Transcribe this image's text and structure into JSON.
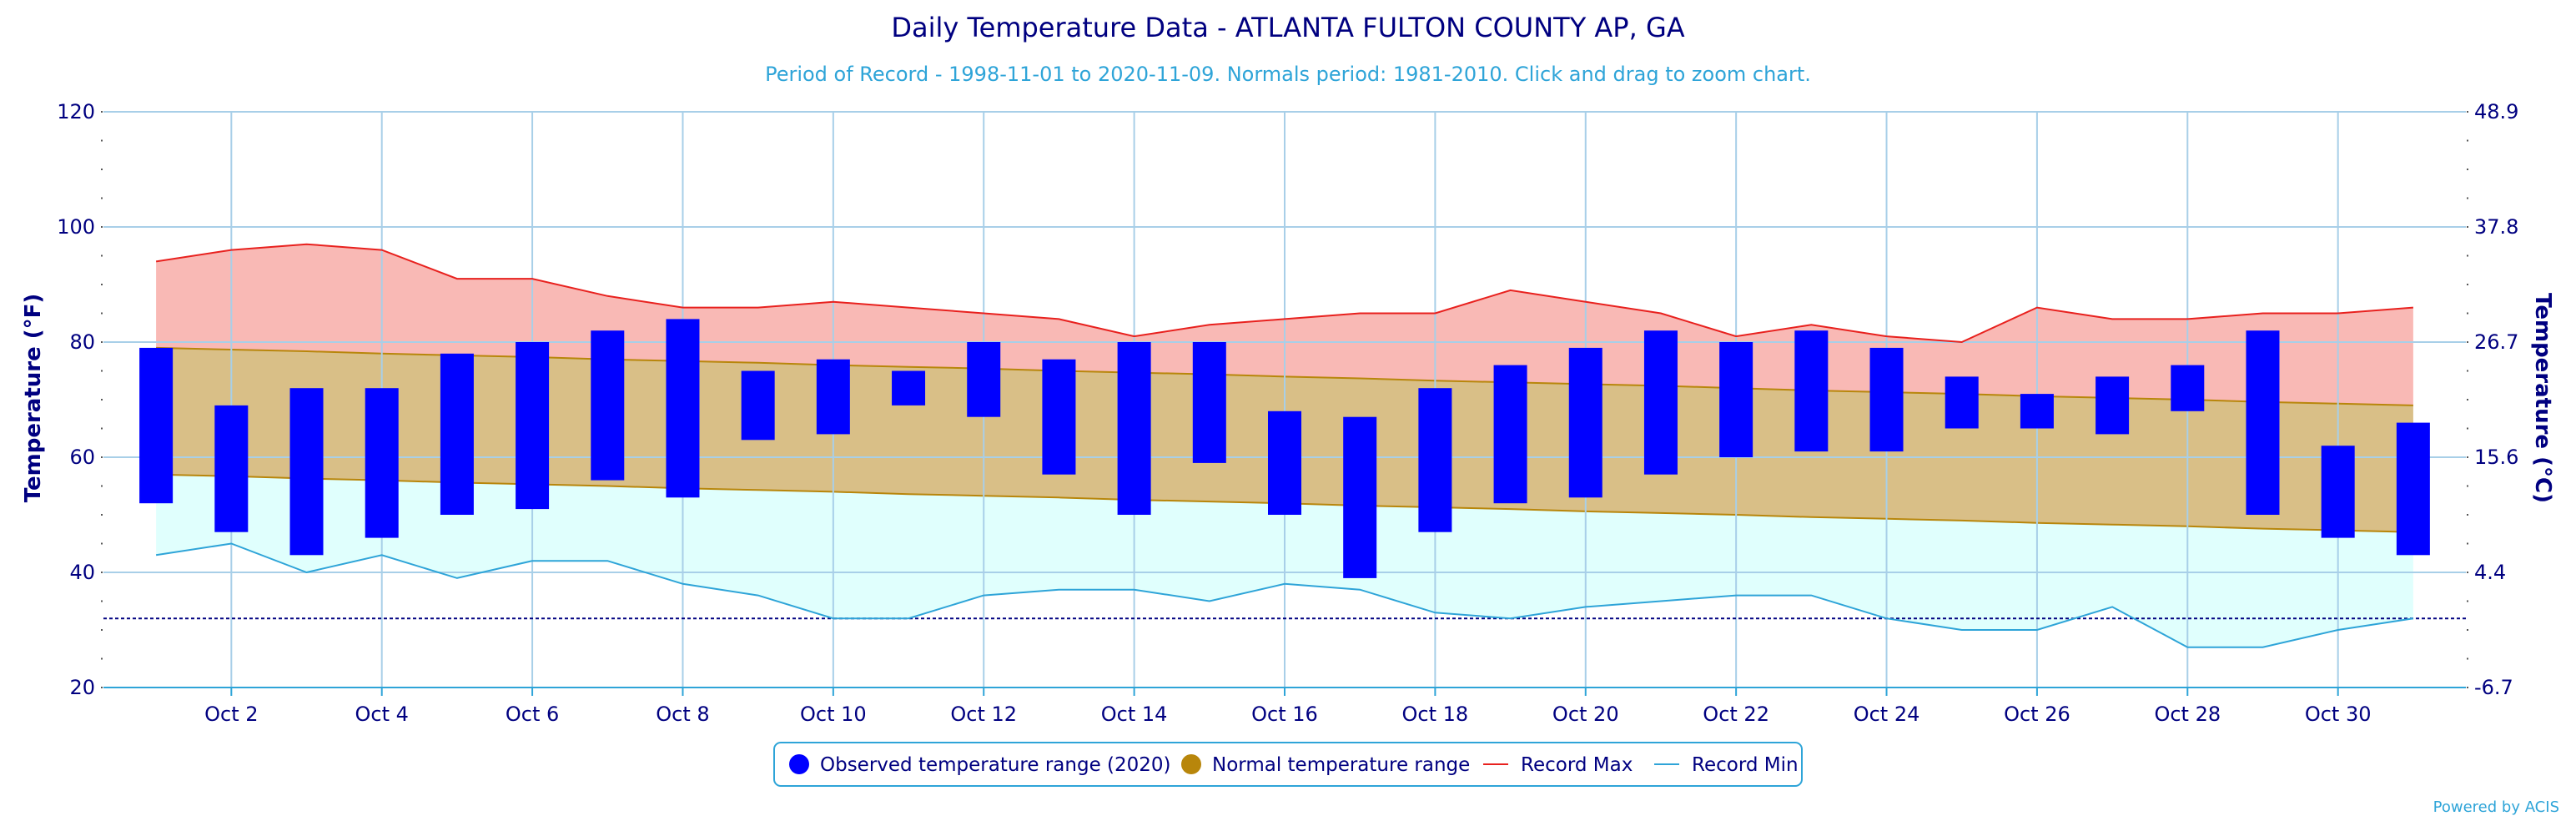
{
  "chart_data": {
    "type": "bar",
    "title": "Daily Temperature Data - ATLANTA FULTON COUNTY AP, GA",
    "subtitle": "Period of Record - 1998-11-01 to 2020-11-09. Normals period: 1981-2010. Click and drag to zoom chart.",
    "ylabel": "Temperature (°F)",
    "ylabel_right": "Temperature (°C)",
    "ylim": [
      20,
      120
    ],
    "yticks": [
      20,
      40,
      60,
      80,
      100,
      120
    ],
    "yticks_right": [
      "-6.7",
      "4.4",
      "15.6",
      "26.7",
      "37.8",
      "48.9"
    ],
    "xlim": [
      0.3,
      31.7
    ],
    "xticks": [
      {
        "day": 2,
        "label": "Oct 2"
      },
      {
        "day": 4,
        "label": "Oct 4"
      },
      {
        "day": 6,
        "label": "Oct 6"
      },
      {
        "day": 8,
        "label": "Oct 8"
      },
      {
        "day": 10,
        "label": "Oct 10"
      },
      {
        "day": 12,
        "label": "Oct 12"
      },
      {
        "day": 14,
        "label": "Oct 14"
      },
      {
        "day": 16,
        "label": "Oct 16"
      },
      {
        "day": 18,
        "label": "Oct 18"
      },
      {
        "day": 20,
        "label": "Oct 20"
      },
      {
        "day": 22,
        "label": "Oct 22"
      },
      {
        "day": 24,
        "label": "Oct 24"
      },
      {
        "day": 26,
        "label": "Oct 26"
      },
      {
        "day": 28,
        "label": "Oct 28"
      },
      {
        "day": 30,
        "label": "Oct 30"
      }
    ],
    "days": [
      1,
      2,
      3,
      4,
      5,
      6,
      7,
      8,
      9,
      10,
      11,
      12,
      13,
      14,
      15,
      16,
      17,
      18,
      19,
      20,
      21,
      22,
      23,
      24,
      25,
      26,
      27,
      28,
      29,
      30,
      31
    ],
    "freeze_line": 32,
    "grid": true,
    "legend_position": "bottom",
    "series": [
      {
        "name": "Observed temperature range (2020)",
        "color": "#0000ff",
        "low": [
          52,
          47,
          43,
          46,
          50,
          51,
          56,
          53,
          63,
          64,
          69,
          67,
          57,
          50,
          59,
          50,
          39,
          47,
          52,
          53,
          57,
          60,
          61,
          61,
          65,
          65,
          64,
          68,
          50,
          46,
          43
        ],
        "high": [
          79,
          69,
          72,
          72,
          78,
          80,
          82,
          84,
          75,
          77,
          75,
          80,
          77,
          80,
          80,
          68,
          67,
          72,
          76,
          79,
          82,
          80,
          82,
          79,
          74,
          71,
          74,
          76,
          82,
          62,
          66
        ]
      },
      {
        "name": "Normal temperature range",
        "color": "#b8860b",
        "low": [
          57,
          56.7,
          56.3,
          56,
          55.6,
          55.3,
          55,
          54.6,
          54.3,
          54,
          53.6,
          53.3,
          53,
          52.6,
          52.3,
          52,
          51.6,
          51.3,
          51,
          50.6,
          50.3,
          50,
          49.6,
          49.3,
          49,
          48.6,
          48.3,
          48,
          47.6,
          47.3,
          47
        ],
        "high": [
          79,
          78.7,
          78.4,
          78,
          77.7,
          77.4,
          77,
          76.7,
          76.4,
          76,
          75.7,
          75.4,
          75,
          74.7,
          74.4,
          74,
          73.7,
          73.3,
          73,
          72.7,
          72.4,
          72,
          71.6,
          71.3,
          71,
          70.6,
          70.3,
          70,
          69.6,
          69.3,
          69
        ]
      },
      {
        "name": "Record Max",
        "color": "#e8211e",
        "values": [
          94,
          96,
          97,
          96,
          91,
          91,
          88,
          86,
          86,
          87,
          86,
          85,
          84,
          81,
          83,
          84,
          85,
          85,
          89,
          87,
          85,
          81,
          83,
          81,
          80,
          86,
          84,
          84,
          85,
          85,
          86
        ]
      },
      {
        "name": "Record Min",
        "color": "#2ea4d8",
        "values": [
          43,
          45,
          40,
          43,
          39,
          42,
          42,
          38,
          36,
          32,
          32,
          36,
          37,
          37,
          35,
          38,
          37,
          33,
          32,
          34,
          35,
          36,
          36,
          32,
          30,
          30,
          34,
          27,
          27,
          30,
          32
        ]
      }
    ]
  },
  "credit": "Powered by ACIS",
  "colors": {
    "record_band": "#f9b9b5",
    "normal_band": "#d9bf87",
    "min_band": "#e0fffd",
    "grid": "#a8cfe8",
    "axis_text": "#000080",
    "freeze_line": "#000080",
    "legend_border": "#2ea4d8"
  }
}
